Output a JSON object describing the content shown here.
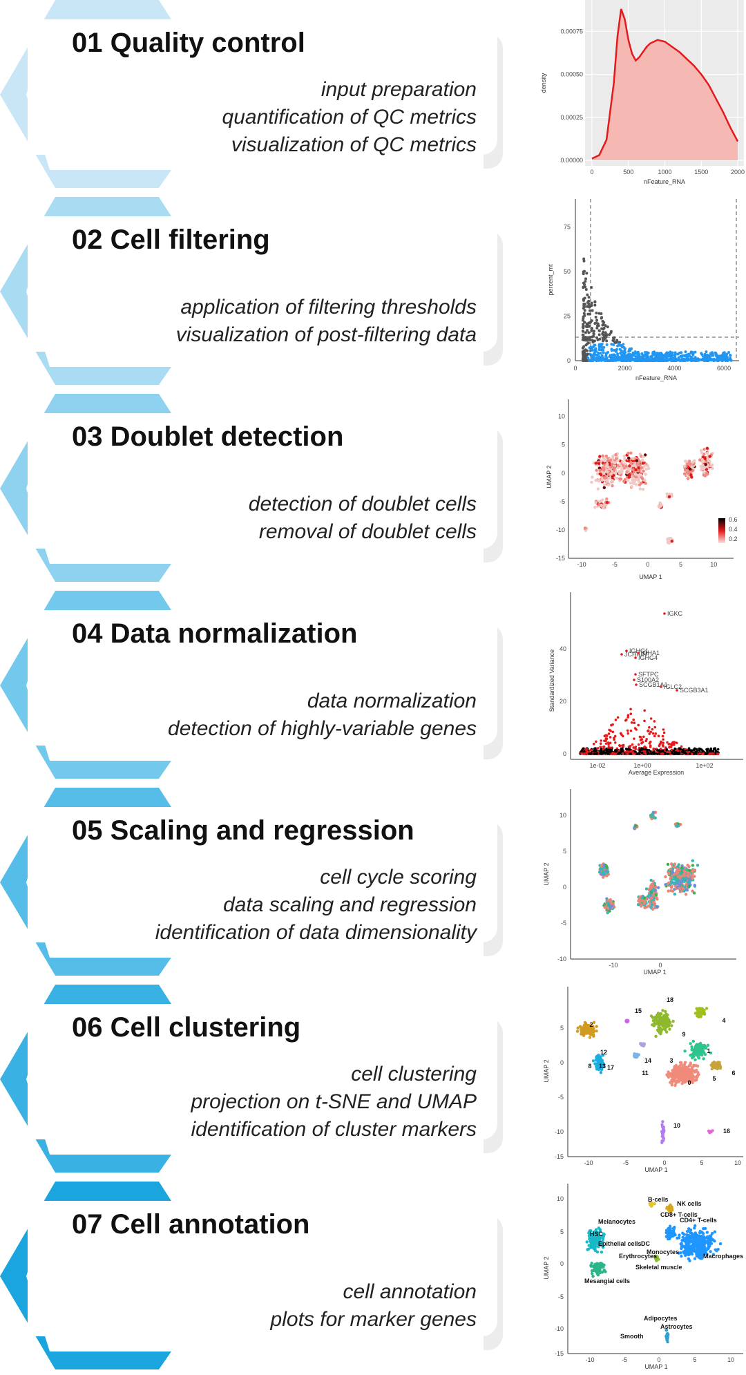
{
  "colors": {
    "chevrons": [
      "#c8e6f5",
      "#a9dcf2",
      "#8ed2ef",
      "#73c9ec",
      "#55bde8",
      "#39b1e3",
      "#1aa5df"
    ],
    "accent_red": "#e31a1c",
    "filtered_blue": "#2196f3"
  },
  "steps": [
    {
      "title": "01 Quality control",
      "lines": [
        "input preparation",
        "quantification of QC metrics",
        "visualization of QC metrics"
      ]
    },
    {
      "title": "02 Cell filtering",
      "lines": [
        "application of filtering thresholds",
        "visualization of post-filtering data"
      ]
    },
    {
      "title": "03 Doublet detection",
      "lines": [
        "detection of doublet cells",
        "removal of doublet cells"
      ]
    },
    {
      "title": "04 Data normalization",
      "lines": [
        "data normalization",
        "detection of highly-variable genes"
      ]
    },
    {
      "title": "05 Scaling and regression",
      "lines": [
        "cell cycle scoring",
        "data scaling and regression",
        "identification of data dimensionality"
      ]
    },
    {
      "title": "06 Cell clustering",
      "lines": [
        "cell clustering",
        "projection on t-SNE and UMAP",
        "identification of cluster markers"
      ]
    },
    {
      "title": "07 Cell annotation",
      "lines": [
        "cell annotation",
        "plots for marker genes"
      ]
    }
  ],
  "chart_data": [
    {
      "type": "area",
      "xlabel": "nFeature_RNA",
      "ylabel": "density",
      "xlim": [
        0,
        2000
      ],
      "ylim": [
        0,
        0.0009
      ],
      "x_ticks": [
        "0",
        "500",
        "1000",
        "1500",
        "2000"
      ],
      "y_ticks": [
        "0.00000",
        "0.00025",
        "0.00050",
        "0.00075"
      ],
      "x": [
        0,
        100,
        200,
        300,
        350,
        400,
        450,
        500,
        550,
        600,
        650,
        700,
        750,
        800,
        900,
        1000,
        1100,
        1200,
        1300,
        1400,
        1500,
        1600,
        1700,
        1800,
        1900,
        2000
      ],
      "y": [
        1e-05,
        3e-05,
        0.00012,
        0.00045,
        0.00072,
        0.00088,
        0.00082,
        0.0007,
        0.00062,
        0.00058,
        0.0006,
        0.00063,
        0.00066,
        0.00068,
        0.0007,
        0.00069,
        0.00066,
        0.00063,
        0.00059,
        0.00055,
        0.0005,
        0.00044,
        0.00036,
        0.00028,
        0.00019,
        0.00011
      ]
    },
    {
      "type": "scatter",
      "xlabel": "nFeature_RNA",
      "ylabel": "percent_mt",
      "xlim": [
        0,
        6500
      ],
      "ylim": [
        0,
        90
      ],
      "x_ticks": [
        "0",
        "2000",
        "4000",
        "6000"
      ],
      "y_ticks": [
        "0",
        "25",
        "50",
        "75"
      ],
      "thresholds": {
        "x_min": 500,
        "x_max": 6500,
        "y_max": 10
      },
      "series": []
    },
    {
      "type": "scatter",
      "xlabel": "UMAP 1",
      "ylabel": "UMAP 2",
      "xlim": [
        -12,
        13
      ],
      "ylim": [
        -15,
        13
      ],
      "x_ticks": [
        "-10",
        "-5",
        "0",
        "5",
        "10"
      ],
      "y_ticks": [
        "10",
        "5",
        "0",
        "-5",
        "-10",
        "-15"
      ],
      "legend_ticks": [
        "0.6",
        "0.4",
        "0.2"
      ],
      "series": []
    },
    {
      "type": "scatter",
      "xlabel": "Average Expression",
      "ylabel": "Standardized Variance",
      "x_ticks": [
        "1e-02",
        "1e+00",
        "1e+02"
      ],
      "y_ticks": [
        "0",
        "20",
        "40"
      ],
      "annotations": [
        "IGKC",
        "IGHG1",
        "JCHAIN",
        "IGHA1",
        "IGHG4",
        "SFTPC",
        "S100A2",
        "SCGB1A1",
        "IGLC2",
        "SCGB3A1"
      ],
      "series": []
    },
    {
      "type": "scatter",
      "xlabel": "UMAP 1",
      "ylabel": "UMAP 2",
      "x_ticks": [
        "-10",
        "0"
      ],
      "y_ticks": [
        "10",
        "5",
        "0",
        "-5",
        "-10"
      ],
      "series": []
    },
    {
      "type": "scatter",
      "xlabel": "UMAP 1",
      "ylabel": "UMAP 2",
      "x_ticks": [
        "-10",
        "-5",
        "0",
        "5",
        "10"
      ],
      "y_ticks": [
        "5",
        "0",
        "-5",
        "-10",
        "-15"
      ],
      "cluster_labels": [
        "0",
        "1",
        "2",
        "3",
        "4",
        "5",
        "6",
        "8",
        "9",
        "10",
        "11",
        "12",
        "13",
        "14",
        "15",
        "16",
        "17",
        "18"
      ],
      "series": []
    },
    {
      "type": "scatter",
      "xlabel": "UMAP 1",
      "ylabel": "UMAP 2",
      "x_ticks": [
        "-10",
        "-5",
        "0",
        "5",
        "10"
      ],
      "y_ticks": [
        "10",
        "5",
        "0",
        "-5",
        "-10",
        "-15"
      ],
      "cell_type_labels": [
        "B-cells",
        "NK cells",
        "CD8+ T-cells",
        "CD4+ T-cells",
        "Melanocytes",
        "HSC",
        "Epithelial cells",
        "DC",
        "Monocytes",
        "Erythrocytes",
        "Macrophages",
        "Skeletal muscle",
        "Mesangial cells",
        "Adipocytes",
        "Astrocytes",
        "Smooth"
      ],
      "series": []
    }
  ]
}
